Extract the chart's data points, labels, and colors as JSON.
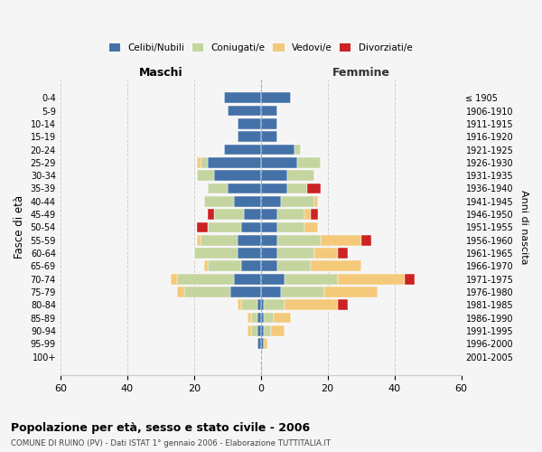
{
  "age_groups": [
    "0-4",
    "5-9",
    "10-14",
    "15-19",
    "20-24",
    "25-29",
    "30-34",
    "35-39",
    "40-44",
    "45-49",
    "50-54",
    "55-59",
    "60-64",
    "65-69",
    "70-74",
    "75-79",
    "80-84",
    "85-89",
    "90-94",
    "95-99",
    "100+"
  ],
  "birth_years": [
    "2001-2005",
    "1996-2000",
    "1991-1995",
    "1986-1990",
    "1981-1985",
    "1976-1980",
    "1971-1975",
    "1966-1970",
    "1961-1965",
    "1956-1960",
    "1951-1955",
    "1946-1950",
    "1941-1945",
    "1936-1940",
    "1931-1935",
    "1926-1930",
    "1921-1925",
    "1916-1920",
    "1911-1915",
    "1906-1910",
    "≤ 1905"
  ],
  "colors": {
    "celibi": "#4472a8",
    "coniugati": "#c5d5a0",
    "vedovi": "#f5c97a",
    "divorziati": "#cc2222"
  },
  "males": {
    "celibi": [
      11,
      10,
      7,
      7,
      11,
      16,
      14,
      10,
      8,
      5,
      6,
      7,
      7,
      6,
      8,
      9,
      1,
      1,
      1,
      1,
      0
    ],
    "coniugati": [
      0,
      0,
      0,
      0,
      0,
      2,
      5,
      6,
      9,
      9,
      10,
      11,
      13,
      10,
      17,
      14,
      5,
      2,
      2,
      0,
      0
    ],
    "vedovi": [
      0,
      0,
      0,
      0,
      0,
      1,
      0,
      0,
      0,
      0,
      0,
      1,
      0,
      1,
      2,
      2,
      1,
      1,
      1,
      0,
      0
    ],
    "divorziati": [
      0,
      0,
      0,
      0,
      0,
      0,
      0,
      0,
      0,
      2,
      3,
      0,
      0,
      0,
      0,
      0,
      0,
      0,
      0,
      0,
      0
    ]
  },
  "females": {
    "nubili": [
      9,
      5,
      5,
      5,
      10,
      11,
      8,
      8,
      6,
      5,
      5,
      5,
      5,
      5,
      7,
      6,
      1,
      1,
      1,
      1,
      0
    ],
    "coniugate": [
      0,
      0,
      0,
      0,
      2,
      7,
      8,
      6,
      10,
      8,
      8,
      13,
      11,
      10,
      16,
      13,
      6,
      3,
      2,
      0,
      0
    ],
    "vedove": [
      0,
      0,
      0,
      0,
      0,
      0,
      0,
      0,
      1,
      2,
      4,
      12,
      7,
      15,
      20,
      16,
      16,
      5,
      4,
      1,
      0
    ],
    "divorziate": [
      0,
      0,
      0,
      0,
      0,
      0,
      0,
      4,
      0,
      2,
      0,
      3,
      3,
      0,
      3,
      0,
      3,
      0,
      0,
      0,
      0
    ]
  },
  "xlim": 60,
  "title": "Popolazione per età, sesso e stato civile - 2006",
  "subtitle": "COMUNE DI RUINO (PV) - Dati ISTAT 1° gennaio 2006 - Elaborazione TUTTITALIA.IT",
  "ylabel_left": "Fasce di età",
  "ylabel_right": "Anni di nascita",
  "xlabel_left": "Maschi",
  "xlabel_right": "Femmine",
  "background_color": "#f5f5f5",
  "grid_color": "#cccccc"
}
